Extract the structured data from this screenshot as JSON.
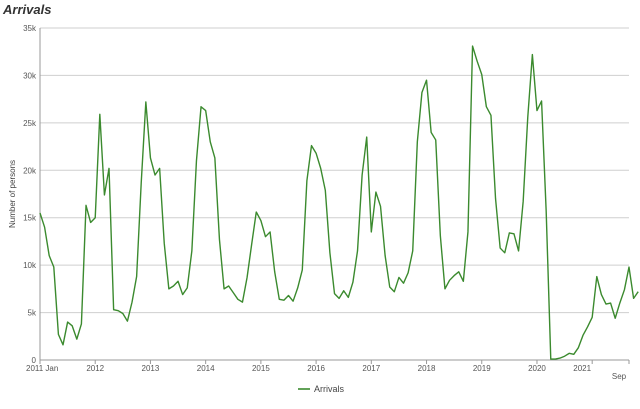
{
  "chart_data": {
    "type": "line",
    "title": "Arrivals",
    "ylabel": "Number of persons",
    "xlabel": "",
    "ylim": [
      0,
      35000
    ],
    "yticks": [
      {
        "value": 0,
        "label": "0"
      },
      {
        "value": 5000,
        "label": "5k"
      },
      {
        "value": 10000,
        "label": "10k"
      },
      {
        "value": 15000,
        "label": "15k"
      },
      {
        "value": 20000,
        "label": "20k"
      },
      {
        "value": 25000,
        "label": "25k"
      },
      {
        "value": 30000,
        "label": "30k"
      },
      {
        "value": 35000,
        "label": "35k"
      }
    ],
    "xrange": [
      "2011-01",
      "2021-09"
    ],
    "xticks": [
      {
        "date": "2011-01",
        "label": "2011 Jan"
      },
      {
        "date": "2012-01",
        "label": "2012"
      },
      {
        "date": "2013-01",
        "label": "2013"
      },
      {
        "date": "2014-01",
        "label": "2014"
      },
      {
        "date": "2015-01",
        "label": "2015"
      },
      {
        "date": "2016-01",
        "label": "2016"
      },
      {
        "date": "2017-01",
        "label": "2017"
      },
      {
        "date": "2018-01",
        "label": "2018"
      },
      {
        "date": "2019-01",
        "label": "2019"
      },
      {
        "date": "2020-01",
        "label": "2020"
      },
      {
        "date": "2021-01",
        "label": "2021"
      },
      {
        "date": "2021-09",
        "label": "Sep"
      }
    ],
    "grid": true,
    "legend": "bottom",
    "series": [
      {
        "name": "Arrivals",
        "color": "#3b8a2e",
        "start": "2011-01",
        "values": [
          15500,
          14000,
          11000,
          9800,
          2700,
          1600,
          4000,
          3600,
          2200,
          3800,
          16300,
          14500,
          15000,
          25900,
          17400,
          20200,
          5300,
          5200,
          4900,
          4100,
          6100,
          8800,
          18700,
          27200,
          21300,
          19500,
          20200,
          12300,
          7500,
          7800,
          8300,
          6900,
          7600,
          11500,
          21000,
          26700,
          26300,
          23000,
          21300,
          12700,
          7500,
          7800,
          7100,
          6400,
          6100,
          8700,
          12200,
          15600,
          14700,
          13000,
          13500,
          9300,
          6400,
          6300,
          6800,
          6200,
          7600,
          9500,
          18900,
          22600,
          21800,
          20200,
          17900,
          11300,
          7000,
          6500,
          7300,
          6600,
          8200,
          11500,
          19500,
          23500,
          13500,
          17700,
          16200,
          11000,
          7700,
          7200,
          8700,
          8100,
          9200,
          11500,
          23000,
          28200,
          29500,
          24000,
          23200,
          13100,
          7500,
          8400,
          8900,
          9300,
          8300,
          13500,
          33100,
          31500,
          30100,
          26700,
          25800,
          17000,
          11800,
          11300,
          13400,
          13300,
          11500,
          16700,
          25600,
          32200,
          26300,
          27300,
          15700,
          100,
          100,
          200,
          400,
          700,
          600,
          1300,
          2600,
          3500,
          4500,
          8800,
          6900,
          5900,
          6000,
          4400,
          6000,
          7400,
          9800,
          6500,
          7200
        ]
      }
    ]
  }
}
